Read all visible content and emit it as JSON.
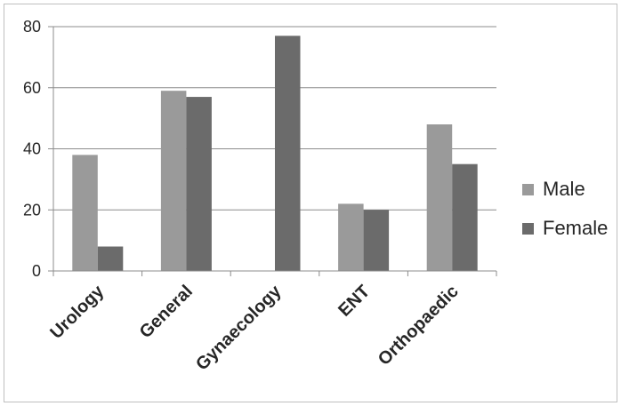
{
  "chart_data": {
    "type": "bar",
    "categories": [
      "Urology",
      "General",
      "Gynaecology",
      "ENT",
      "Orthopaedic"
    ],
    "series": [
      {
        "name": "Male",
        "values": [
          38,
          59,
          null,
          22,
          48
        ]
      },
      {
        "name": "Female",
        "values": [
          8,
          57,
          77,
          20,
          35
        ]
      }
    ],
    "yticks": [
      "0",
      "20",
      "40",
      "60",
      "80"
    ],
    "ylim": [
      0,
      80
    ],
    "grid": true,
    "legend_position": "right",
    "colors": {
      "Male": "#9a9a9a",
      "Female": "#6b6b6b",
      "grid": "#8c8c8c",
      "axis": "#8c8c8c"
    }
  }
}
